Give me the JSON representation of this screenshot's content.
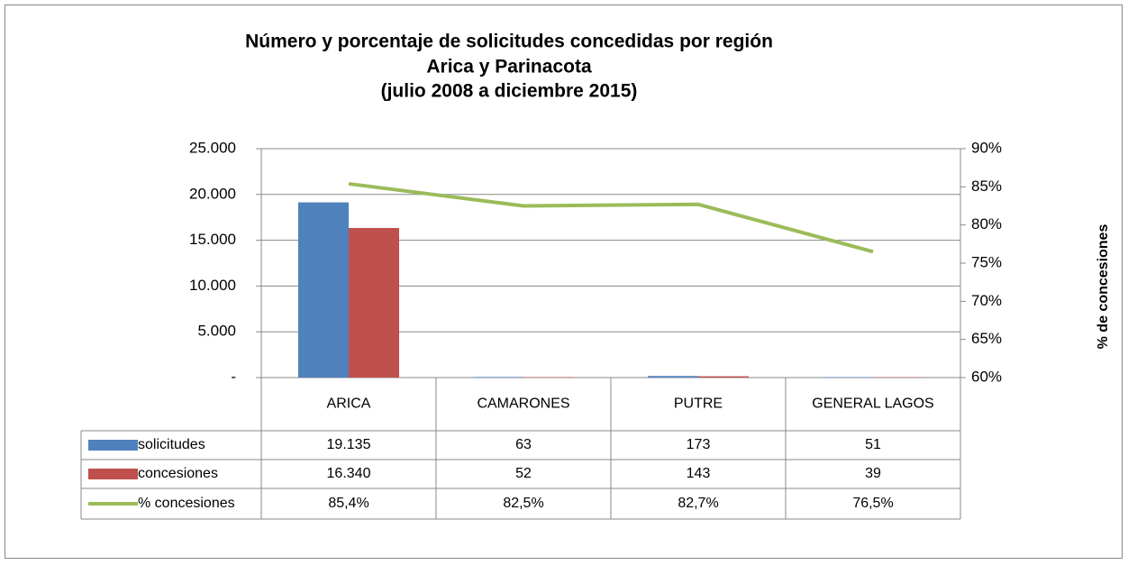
{
  "chart_data": {
    "type": "bar",
    "title": [
      "Número y porcentaje de solicitudes concedidas por región",
      "Arica y Parinacota",
      "(julio 2008 a diciembre 2015)"
    ],
    "categories": [
      "ARICA",
      "CAMARONES",
      "PUTRE",
      "GENERAL LAGOS"
    ],
    "series": [
      {
        "name": "solicitudes",
        "type": "bar",
        "color": "#4f81bd",
        "values": [
          19135,
          63,
          173,
          51
        ],
        "value_labels": [
          "19.135",
          "63",
          "173",
          "51"
        ]
      },
      {
        "name": "concesiones",
        "type": "bar",
        "color": "#c0504d",
        "values": [
          16340,
          52,
          143,
          39
        ],
        "value_labels": [
          "16.340",
          "52",
          "143",
          "39"
        ]
      },
      {
        "name": "% concesiones",
        "type": "line",
        "axis": "y2",
        "color": "#9bbb59",
        "values": [
          85.4,
          82.5,
          82.7,
          76.5
        ],
        "value_labels": [
          "85,4%",
          "82,5%",
          "82,7%",
          "76,5%"
        ]
      }
    ],
    "ylim": [
      0,
      25000
    ],
    "yticks": [
      {
        "value": 0,
        "label": "-"
      },
      {
        "value": 5000,
        "label": "5.000"
      },
      {
        "value": 10000,
        "label": "10.000"
      },
      {
        "value": 15000,
        "label": "15.000"
      },
      {
        "value": 20000,
        "label": "20.000"
      },
      {
        "value": 25000,
        "label": "25.000"
      }
    ],
    "y2lim": [
      60,
      90
    ],
    "y2ticks": [
      {
        "value": 60,
        "label": "60%"
      },
      {
        "value": 65,
        "label": "65%"
      },
      {
        "value": 70,
        "label": "70%"
      },
      {
        "value": 75,
        "label": "75%"
      },
      {
        "value": 80,
        "label": "80%"
      },
      {
        "value": 85,
        "label": "85%"
      },
      {
        "value": 90,
        "label": "90%"
      }
    ],
    "y2label": "% de concesiones",
    "grid": true
  }
}
